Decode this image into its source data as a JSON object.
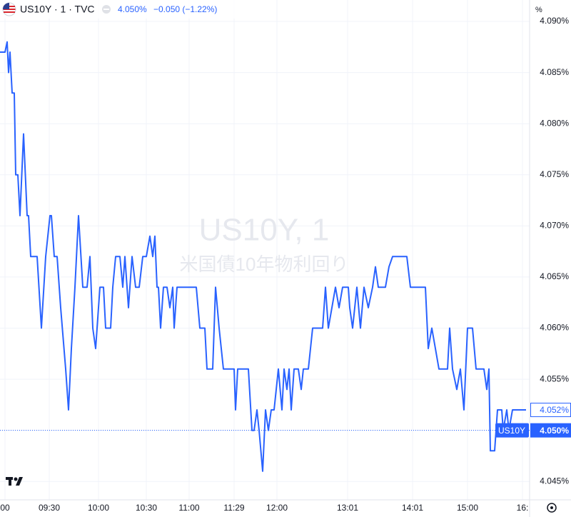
{
  "header": {
    "symbol": "US10Y · 1 · TVC",
    "price": "4.050%",
    "change": "−0.050 (−1.22%)",
    "axis_unit": "%"
  },
  "chart_data": {
    "type": "line",
    "watermark": "US10Y, 1",
    "watermark_subtitle": "米国債10年物利回り",
    "color": "#2962ff",
    "grid": true,
    "x": [
      0,
      7,
      10,
      12,
      14,
      17,
      20,
      22,
      25,
      28,
      33,
      38,
      40,
      43,
      52,
      58,
      64,
      70,
      72,
      76,
      80,
      85,
      92,
      96,
      100,
      105,
      110,
      116,
      122,
      126,
      130,
      134,
      140,
      145,
      148,
      155,
      158,
      162,
      168,
      172,
      175,
      180,
      185,
      190,
      195,
      200,
      205,
      210,
      214,
      217,
      220,
      222,
      225,
      229,
      234,
      238,
      242,
      244,
      248,
      275,
      280,
      287,
      290,
      298,
      302,
      307,
      313,
      328,
      330,
      333,
      348,
      353,
      356,
      360,
      363,
      368,
      372,
      376,
      380,
      384,
      390,
      395,
      398,
      402,
      405,
      408,
      412,
      418,
      422,
      425,
      432,
      438,
      452,
      456,
      460,
      465,
      470,
      475,
      480,
      488,
      490,
      494,
      500,
      505,
      510,
      516,
      522,
      526,
      530,
      540,
      545,
      550,
      570,
      575,
      596,
      600,
      605,
      610,
      615,
      627,
      630,
      634,
      640,
      645,
      650,
      655,
      662,
      667,
      678,
      682,
      685,
      687,
      693,
      697,
      703,
      705,
      710,
      713,
      718,
      737
    ],
    "values": [
      4.087,
      4.087,
      4.088,
      4.085,
      4.087,
      4.083,
      4.083,
      4.075,
      4.075,
      4.071,
      4.079,
      4.071,
      4.071,
      4.067,
      4.067,
      4.06,
      4.067,
      4.071,
      4.071,
      4.067,
      4.067,
      4.062,
      4.056,
      4.052,
      4.058,
      4.064,
      4.071,
      4.064,
      4.064,
      4.067,
      4.06,
      4.058,
      4.064,
      4.064,
      4.06,
      4.06,
      4.064,
      4.067,
      4.067,
      4.064,
      4.067,
      4.062,
      4.067,
      4.064,
      4.064,
      4.067,
      4.067,
      4.069,
      4.067,
      4.069,
      4.064,
      4.064,
      4.06,
      4.064,
      4.064,
      4.062,
      4.064,
      4.06,
      4.064,
      4.064,
      4.06,
      4.06,
      4.056,
      4.056,
      4.064,
      4.06,
      4.056,
      4.056,
      4.052,
      4.056,
      4.056,
      4.05,
      4.05,
      4.052,
      4.05,
      4.046,
      4.052,
      4.05,
      4.052,
      4.052,
      4.056,
      4.052,
      4.056,
      4.054,
      4.056,
      4.052,
      4.056,
      4.056,
      4.054,
      4.056,
      4.056,
      4.06,
      4.06,
      4.064,
      4.06,
      4.062,
      4.064,
      4.062,
      4.064,
      4.064,
      4.062,
      4.06,
      4.064,
      4.06,
      4.064,
      4.062,
      4.064,
      4.066,
      4.064,
      4.064,
      4.066,
      4.067,
      4.067,
      4.064,
      4.064,
      4.058,
      4.06,
      4.058,
      4.056,
      4.056,
      4.06,
      4.056,
      4.054,
      4.056,
      4.052,
      4.06,
      4.06,
      4.056,
      4.056,
      4.054,
      4.056,
      4.048,
      4.048,
      4.052,
      4.052,
      4.05,
      4.052,
      4.05,
      4.052,
      4.052
    ],
    "last_value_label": "4.052%",
    "reference_line": {
      "name": "US10Y",
      "value": 4.05,
      "label": "4.050%"
    },
    "xlim": [
      0,
      742
    ],
    "xticks": [
      {
        "value": 7,
        "label": "00"
      },
      {
        "value": 69,
        "label": "09:30"
      },
      {
        "value": 138,
        "label": "10:00"
      },
      {
        "value": 205,
        "label": "10:30"
      },
      {
        "value": 265,
        "label": "11:00"
      },
      {
        "value": 328,
        "label": "11:29"
      },
      {
        "value": 388,
        "label": "12:00"
      },
      {
        "value": 487,
        "label": "13:01"
      },
      {
        "value": 578,
        "label": "14:01"
      },
      {
        "value": 655,
        "label": "15:00"
      },
      {
        "value": 732,
        "label": "16:"
      }
    ],
    "ylim": [
      4.0432,
      4.0921
    ],
    "yticks": [
      {
        "value": 4.045,
        "label": "4.045%"
      },
      {
        "value": 4.05,
        "label": "4.050%"
      },
      {
        "value": 4.055,
        "label": "4.055%"
      },
      {
        "value": 4.06,
        "label": "4.060%"
      },
      {
        "value": 4.065,
        "label": "4.065%"
      },
      {
        "value": 4.07,
        "label": "4.070%"
      },
      {
        "value": 4.075,
        "label": "4.075%"
      },
      {
        "value": 4.08,
        "label": "4.080%"
      },
      {
        "value": 4.085,
        "label": "4.085%"
      },
      {
        "value": 4.09,
        "label": "4.090%"
      }
    ]
  }
}
